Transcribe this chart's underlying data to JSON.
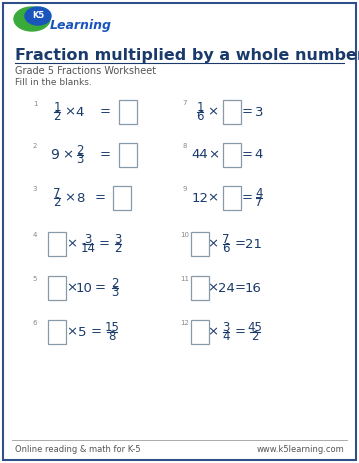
{
  "title": "Fraction multiplied by a whole number",
  "subtitle": "Grade 5 Fractions Worksheet",
  "instruction": "Fill in the blanks.",
  "bg_color": "#ffffff",
  "border_color": "#2E4F8A",
  "title_color": "#1a3a6b",
  "subtitle_color": "#555555",
  "instruction_color": "#555555",
  "math_color": "#1a3a6b",
  "footer_left": "Online reading & math for K-5",
  "footer_right": "www.k5learning.com",
  "footer_color": "#555555",
  "num_color": "#888888",
  "box_edge_color": "#8899aa",
  "logo_green": "#3aaa3a",
  "logo_blue": "#1a55bb"
}
